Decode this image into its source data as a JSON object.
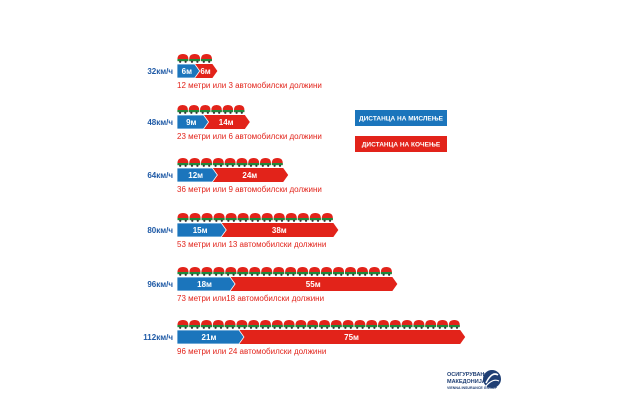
{
  "chart_data": {
    "type": "bar",
    "orientation": "horizontal",
    "stacked": true,
    "categories": [
      "32км/ч",
      "48км/ч",
      "64км/ч",
      "80км/ч",
      "96км/ч",
      "112км/ч"
    ],
    "series": [
      {
        "name": "ДИСТАНЦА НА МИСЛЕЊЕ",
        "color": "#1b75bc",
        "values": [
          6,
          9,
          12,
          15,
          18,
          21
        ],
        "labels": [
          "6м",
          "9м",
          "12м",
          "15м",
          "18м",
          "21м"
        ]
      },
      {
        "name": "ДИСТАНЦА НА КОЧЕЊЕ",
        "color": "#e2231a",
        "values": [
          6,
          14,
          24,
          38,
          55,
          75
        ],
        "labels": [
          "6м",
          "14м",
          "24м",
          "38м",
          "55м",
          "75м"
        ]
      }
    ],
    "car_counts": [
      3,
      6,
      9,
      13,
      18,
      24
    ],
    "captions": [
      "12 метри или 3 автомобилски должини",
      "23 метри или 6 автомобилски должини",
      "36 метри или 9 автомобилски должини",
      "53 метри или 13 автомобилски должини",
      "73 метри или18 автомобилски должини",
      "96 метри или 24 автомобилски должини"
    ],
    "legend": {
      "position": "right",
      "items": [
        {
          "label": "ДИСТАНЦА НА МИСЛЕЊЕ",
          "color": "#1b75bc"
        },
        {
          "label": "ДИСТАНЦА НА КОЧЕЊЕ",
          "color": "#e2231a"
        }
      ]
    },
    "grid": false,
    "title": "",
    "xlabel": "",
    "ylabel": ""
  },
  "logo": {
    "line1": "ОСИГУРУВАЊЕ",
    "line2": "МАКЕДОНИЈА",
    "line3": "VIENNA INSURANCE GROUP"
  },
  "colors": {
    "speed": "#1f5aa6",
    "car_top": "#e2231a",
    "car_bottom": "#1e8a3c",
    "wheel": "#333333"
  }
}
